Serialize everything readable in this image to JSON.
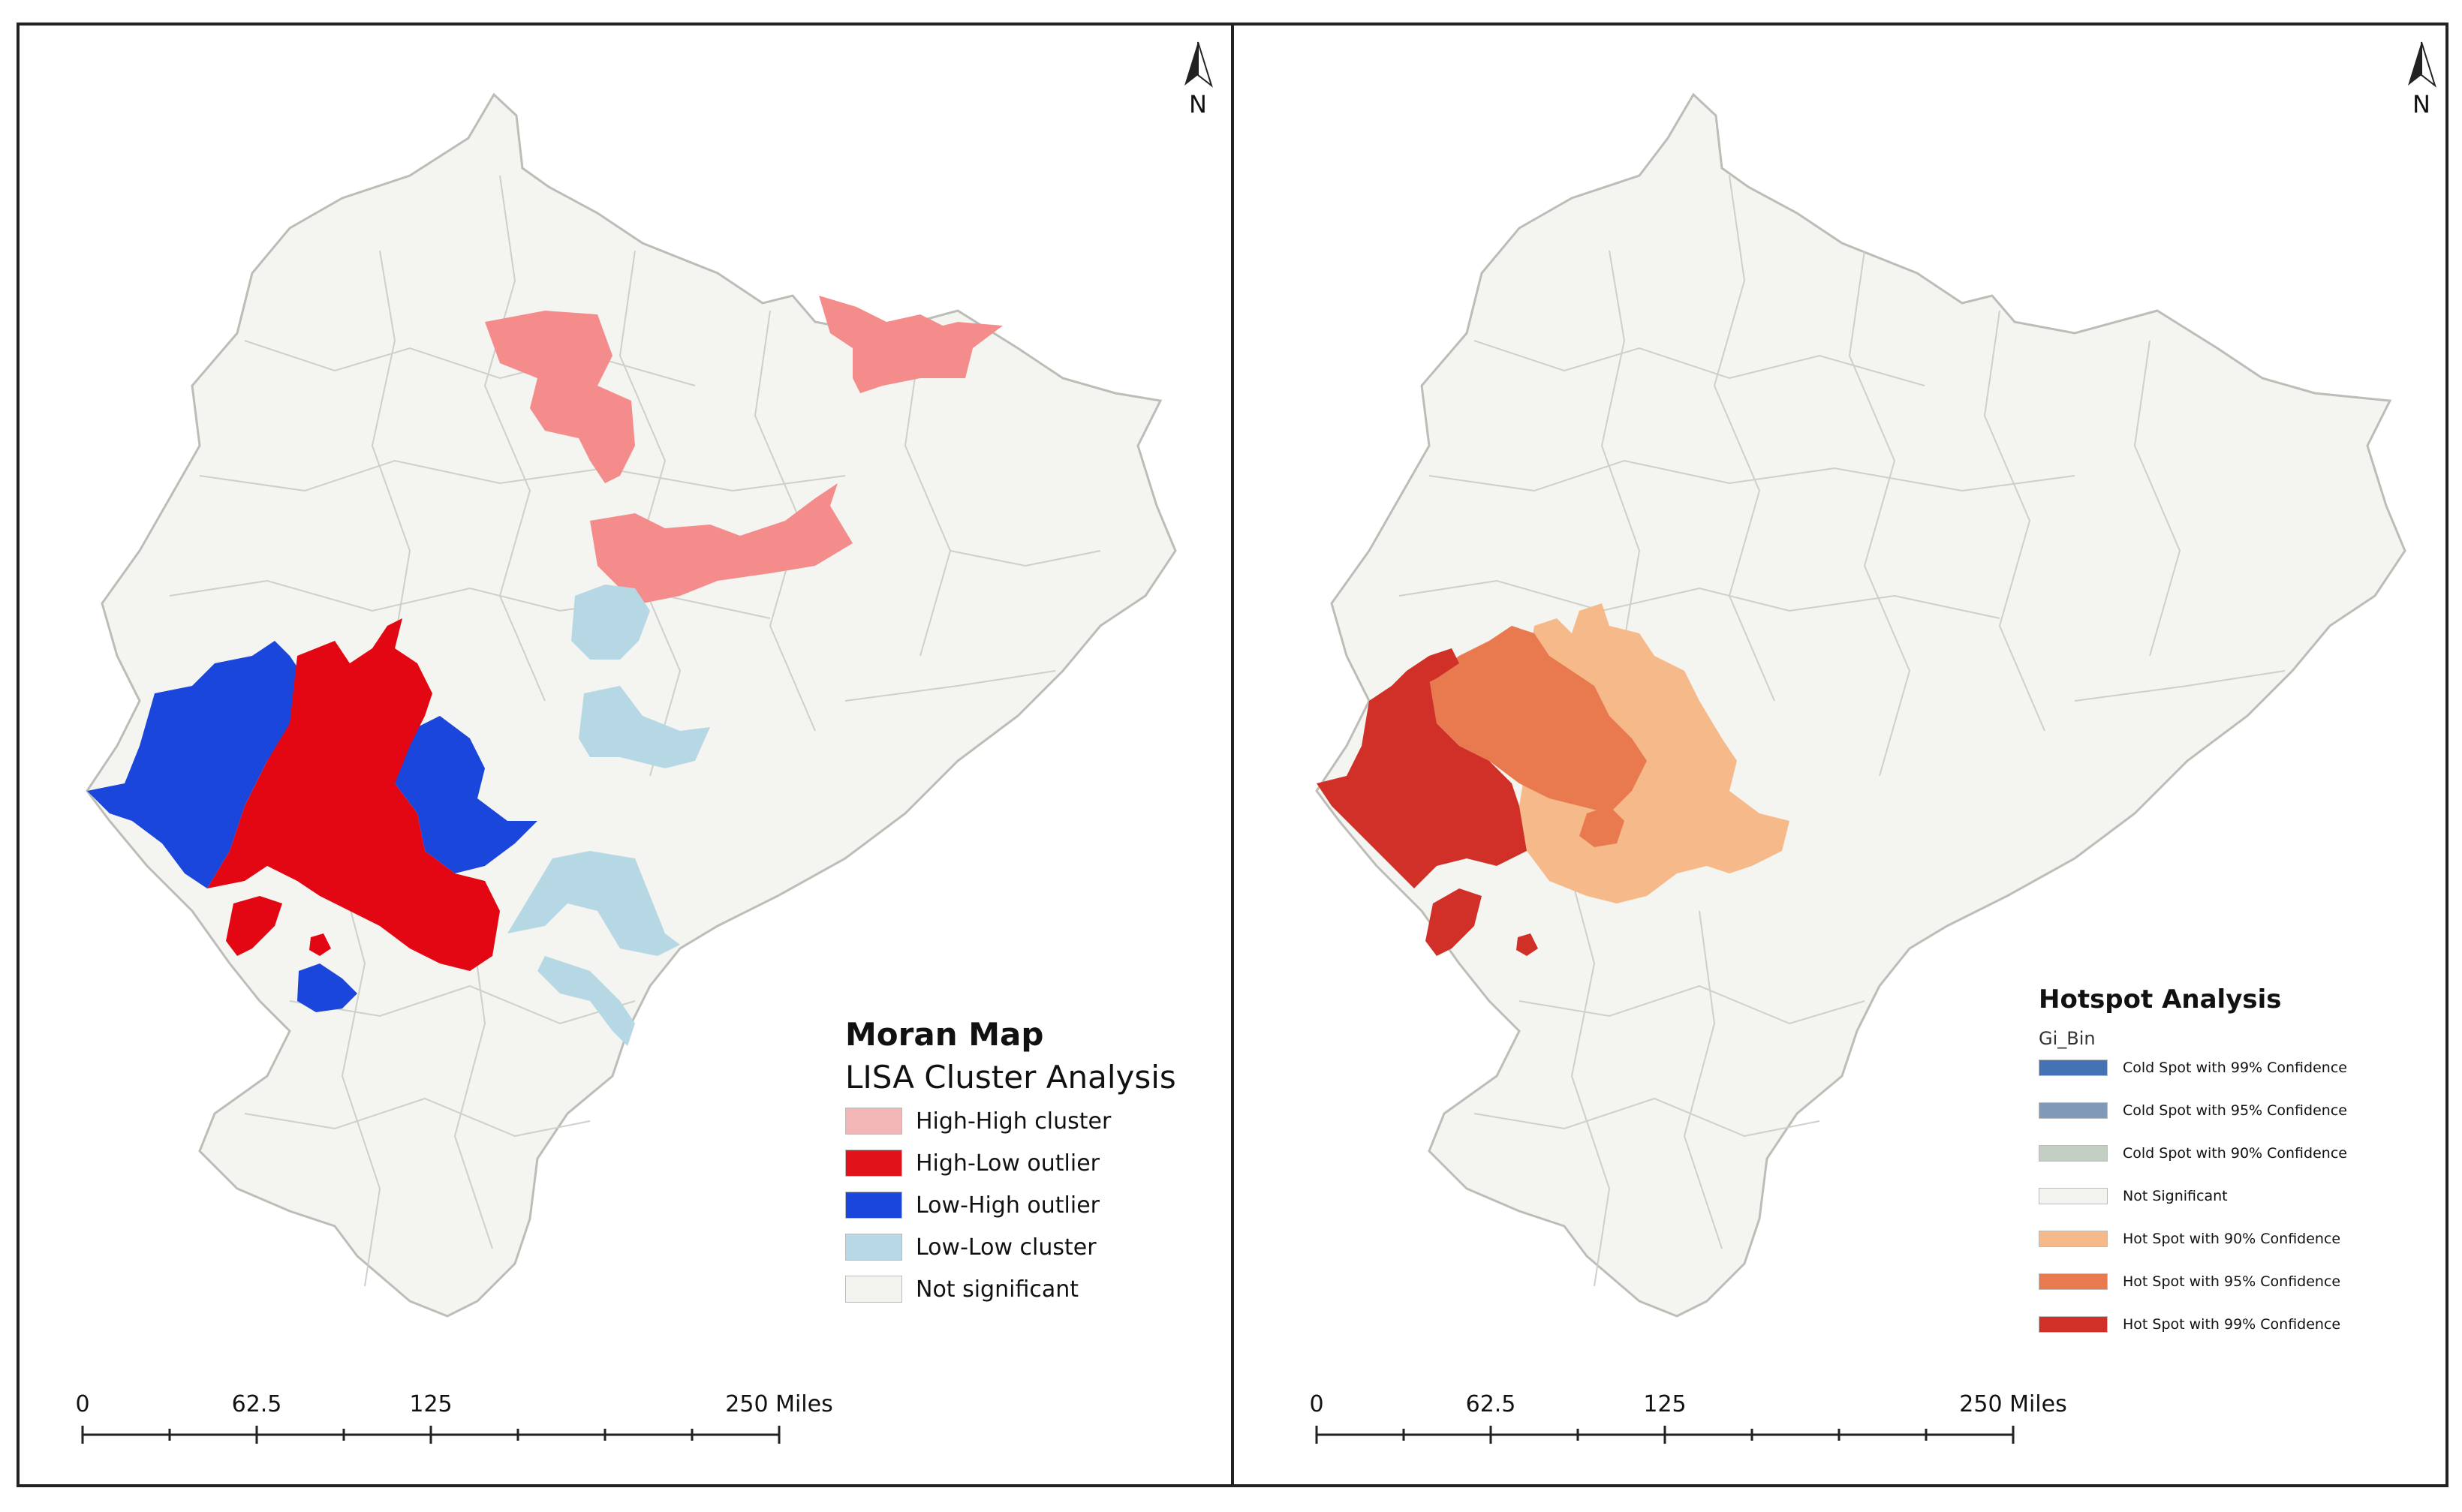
{
  "colors": {
    "background_land": "#f4f4f1",
    "boundary": "#c9c9c4",
    "high_high": "#f48c8c",
    "high_low": "#e30613",
    "low_high": "#1b46dc",
    "low_low": "#b6d7e4",
    "not_significant": "#f3f3f0",
    "cold_99": "#4472b4",
    "cold_95": "#8099b8",
    "cold_90": "#c3cfc2",
    "hot_90": "#f6b98a",
    "hot_95": "#e97a4f",
    "hot_99": "#d13029"
  },
  "left_map": {
    "north_label": "N",
    "legend": {
      "title": "Moran Map",
      "subtitle": "LISA Cluster Analysis",
      "items": [
        {
          "label": "High-High cluster",
          "color": "#f2b6b6"
        },
        {
          "label": "High-Low outlier",
          "color": "#e0121a"
        },
        {
          "label": "Low-High outlier",
          "color": "#1b46dc"
        },
        {
          "label": "Low-Low cluster",
          "color": "#b8d8e8"
        },
        {
          "label": "Not significant",
          "color": "#f3f3f0"
        }
      ]
    },
    "scale": {
      "ticks": [
        "0",
        "62.5",
        "125",
        "250 Miles"
      ]
    }
  },
  "right_map": {
    "north_label": "N",
    "legend": {
      "title": "Hotspot Analysis",
      "field": "Gi_Bin",
      "items": [
        {
          "label": "Cold Spot with 99% Confidence",
          "color": "#4472b4"
        },
        {
          "label": "Cold Spot with 95% Confidence",
          "color": "#8099b8"
        },
        {
          "label": "Cold Spot with 90% Confidence",
          "color": "#c3cfc2"
        },
        {
          "label": "Not Significant",
          "color": "#f3f3f0"
        },
        {
          "label": "Hot Spot with 90% Confidence",
          "color": "#f6b98a"
        },
        {
          "label": "Hot Spot with 95% Confidence",
          "color": "#e97a4f"
        },
        {
          "label": "Hot Spot with 99% Confidence",
          "color": "#d13029"
        }
      ]
    },
    "scale": {
      "ticks": [
        "0",
        "62.5",
        "125",
        "250 Miles"
      ]
    }
  }
}
